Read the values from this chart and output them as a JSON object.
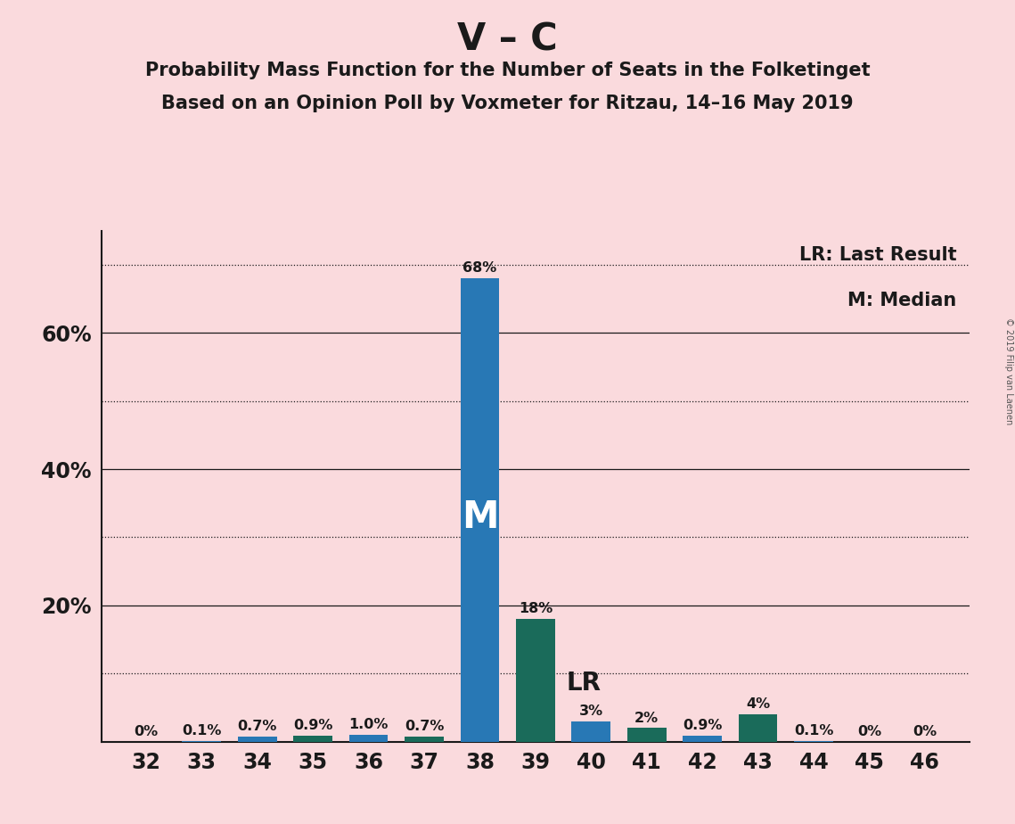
{
  "title_main": "V – C",
  "title_sub1": "Probability Mass Function for the Number of Seats in the Folketinget",
  "title_sub2": "Based on an Opinion Poll by Voxmeter for Ritzau, 14–16 May 2019",
  "copyright": "© 2019 Filip van Laenen",
  "seats": [
    32,
    33,
    34,
    35,
    36,
    37,
    38,
    39,
    40,
    41,
    42,
    43,
    44,
    45,
    46
  ],
  "values": [
    0.0,
    0.1,
    0.7,
    0.9,
    1.0,
    0.7,
    68.0,
    18.0,
    3.0,
    2.0,
    0.9,
    4.0,
    0.1,
    0.0,
    0.0
  ],
  "labels": [
    "0%",
    "0.1%",
    "0.7%",
    "0.9%",
    "1.0%",
    "0.7%",
    "68%",
    "18%",
    "3%",
    "2%",
    "0.9%",
    "4%",
    "0.1%",
    "0%",
    "0%"
  ],
  "colors": [
    "#2878b5",
    "#2878b5",
    "#2878b5",
    "#1a6b5a",
    "#2878b5",
    "#1a6b5a",
    "#2878b5",
    "#1a6b5a",
    "#2878b5",
    "#1a6b5a",
    "#2878b5",
    "#1a6b5a",
    "#2878b5",
    "#2878b5",
    "#2878b5"
  ],
  "median_seat": 38,
  "last_result_seat": 39,
  "background_color": "#fadadd",
  "bar_color_blue": "#2878b5",
  "bar_color_green": "#1a6b5a",
  "ylim_max": 75,
  "solid_gridlines": [
    20,
    40,
    60
  ],
  "dotted_gridlines": [
    10,
    30,
    50,
    70
  ],
  "ytick_positions": [
    20,
    40,
    60
  ],
  "ytick_labels": [
    "20%",
    "40%",
    "60%"
  ],
  "legend_text1": "LR: Last Result",
  "legend_text2": "M: Median",
  "median_label": "M",
  "lr_label": "LR"
}
